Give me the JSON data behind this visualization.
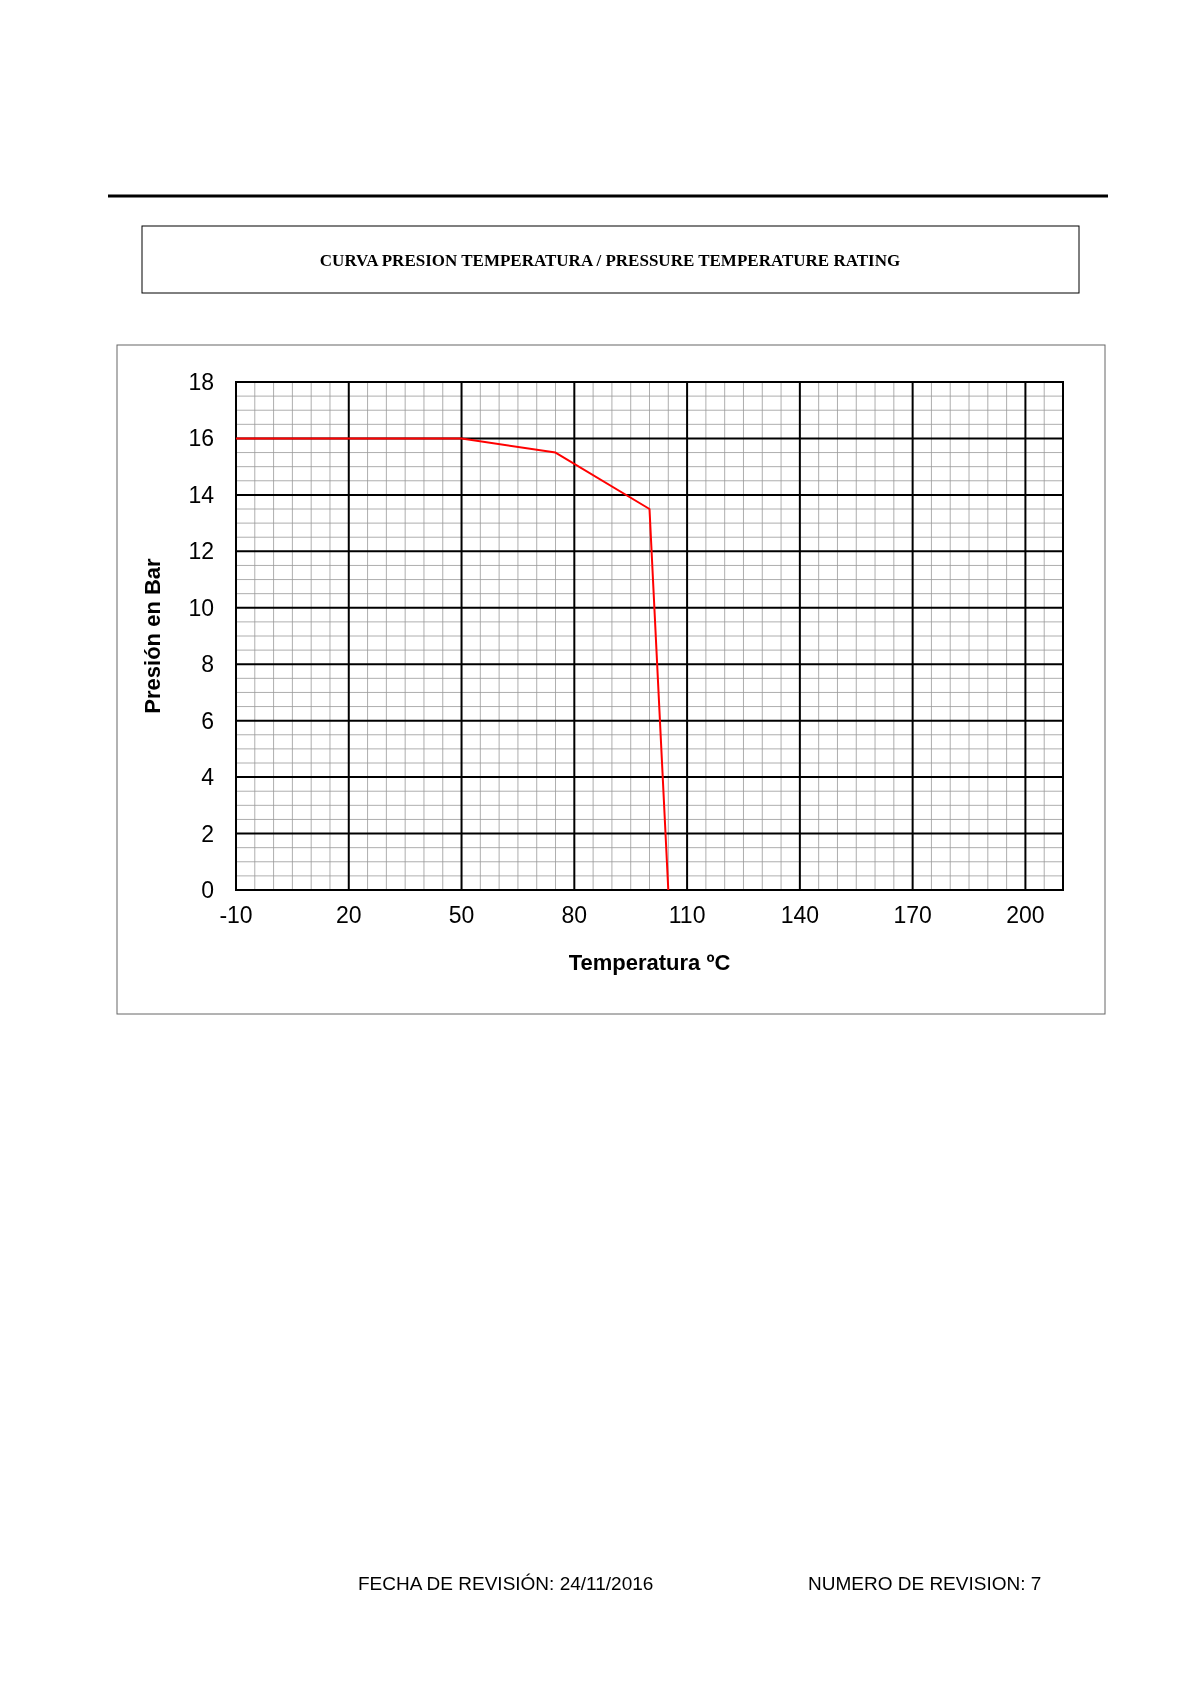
{
  "chart_data": {
    "type": "line",
    "title": "CURVA PRESION TEMPERATURA / PRESSURE TEMPERATURE RATING",
    "xlabel": "Temperatura ºC",
    "ylabel": "Presión en Bar",
    "x": [
      -10,
      50,
      75,
      100,
      105
    ],
    "series": [
      {
        "color": "#ff0000",
        "values": [
          16,
          16,
          15.5,
          13.5,
          0
        ]
      }
    ],
    "xlim": [
      -10,
      210
    ],
    "xticks": [
      -10,
      20,
      50,
      80,
      110,
      140,
      170,
      200
    ],
    "ylim": [
      0,
      18
    ],
    "yticks": [
      0,
      2,
      4,
      6,
      8,
      10,
      12,
      14,
      16,
      18
    ],
    "grid": true,
    "marker": "none",
    "line_style": "solid",
    "annotations": [
      "FECHA DE REVISIÓN: 24/11/2016",
      "NUMERO DE REVISION:  7"
    ]
  }
}
